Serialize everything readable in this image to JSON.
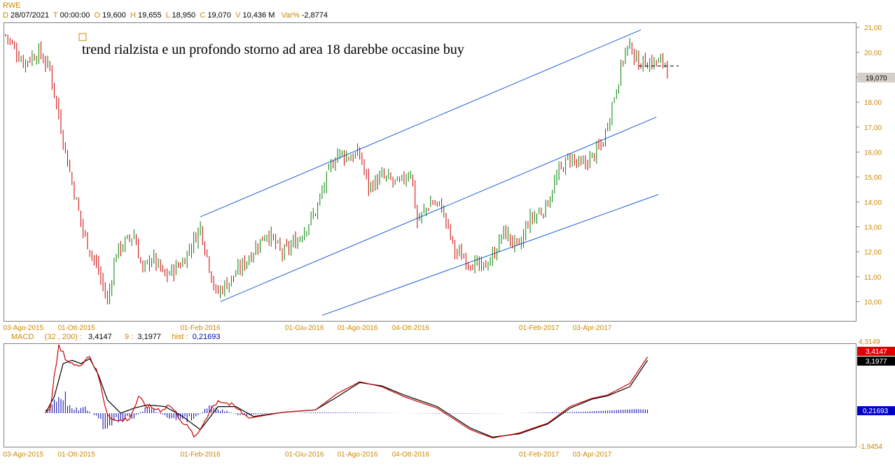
{
  "header": {
    "ticker": "RWE",
    "date_key": "D",
    "date": "28/07/2021",
    "time_key": "T",
    "time": "00:00:00",
    "open_key": "O",
    "open": "19,600",
    "high_key": "H",
    "high": "19,655",
    "low_key": "L",
    "low": "18,950",
    "close_key": "C",
    "close": "19,070",
    "vol_key": "V",
    "vol": "10,436 M",
    "var_key": "Var%",
    "var": "-2,8774"
  },
  "annotation": "trend rialzista e un profondo storno ad area 18 darebbe occasine buy",
  "price_tag": "19,070",
  "macd_header": {
    "name": "MACD",
    "params": "(32 , 200) :",
    "macd_value": "3,4147",
    "signal_key": "9 :",
    "signal_value": "3,1977",
    "hist_key": "hist :",
    "hist_value": "0,21693"
  },
  "macd_tags": {
    "macd": "3,4147",
    "signal": "3,1977",
    "hist": "0,21693"
  },
  "macd_axis": {
    "top": "4,3149",
    "bottom": "-1,9454"
  },
  "colors": {
    "accent": "#cc8800",
    "up": "#008000",
    "down": "#cc0000",
    "channel": "#1f5fd6",
    "macd": "#cc0000",
    "signal": "#000000",
    "hist": "#0000aa"
  },
  "chart_data": [
    {
      "type": "candlestick",
      "title": "RWE",
      "y_ticks": [
        "21,00",
        "20,00",
        "19,00",
        "18,00",
        "17,00",
        "16,00",
        "15,00",
        "14,00",
        "13,00",
        "12,00",
        "11,00",
        "10,00"
      ],
      "ylim": [
        9.2,
        21.2
      ],
      "x_ticks": [
        "03-Ago-2015",
        "01-Ott-2015",
        "01-Feb-2016",
        "01-Giu-2016",
        "01-Ago-2016",
        "04-Ott-2016",
        "01-Feb-2017",
        "03-Apr-2017"
      ],
      "x_tick_index": [
        8,
        32,
        88,
        135,
        159,
        183,
        241,
        265
      ],
      "n_bars": 300,
      "anchors": [
        [
          0,
          20.7
        ],
        [
          8,
          19.6
        ],
        [
          15,
          20.0
        ],
        [
          20,
          19.3
        ],
        [
          28,
          15.6
        ],
        [
          35,
          12.8
        ],
        [
          42,
          11.2
        ],
        [
          46,
          10.0
        ],
        [
          50,
          12.0
        ],
        [
          58,
          12.7
        ],
        [
          62,
          11.2
        ],
        [
          66,
          11.8
        ],
        [
          72,
          11.0
        ],
        [
          80,
          11.6
        ],
        [
          88,
          13.0
        ],
        [
          95,
          10.3
        ],
        [
          103,
          11.0
        ],
        [
          110,
          11.8
        ],
        [
          118,
          12.8
        ],
        [
          125,
          11.9
        ],
        [
          132,
          12.5
        ],
        [
          140,
          13.6
        ],
        [
          146,
          15.2
        ],
        [
          150,
          16.0
        ],
        [
          155,
          15.8
        ],
        [
          160,
          15.9
        ],
        [
          164,
          14.6
        ],
        [
          170,
          15.0
        ],
        [
          178,
          14.7
        ],
        [
          183,
          15.3
        ],
        [
          186,
          13.2
        ],
        [
          192,
          14.0
        ],
        [
          197,
          13.8
        ],
        [
          203,
          12.0
        ],
        [
          210,
          11.6
        ],
        [
          215,
          11.3
        ],
        [
          220,
          11.8
        ],
        [
          225,
          12.8
        ],
        [
          232,
          12.1
        ],
        [
          236,
          13.2
        ],
        [
          244,
          13.8
        ],
        [
          250,
          15.2
        ],
        [
          255,
          15.8
        ],
        [
          260,
          15.4
        ],
        [
          266,
          15.9
        ],
        [
          270,
          16.4
        ],
        [
          272,
          17.2
        ],
        [
          276,
          18.6
        ],
        [
          280,
          20.1
        ],
        [
          283,
          20.2
        ],
        [
          285,
          19.6
        ]
      ],
      "last": {
        "open": 19.6,
        "high": 19.655,
        "low": 18.95,
        "close": 19.07
      },
      "channel": [
        {
          "from": [
            88,
            13.4
          ],
          "to": [
            287,
            20.9
          ]
        },
        {
          "from": [
            97,
            10.0
          ],
          "to": [
            294,
            17.4
          ]
        },
        {
          "from": [
            143,
            9.45
          ],
          "to": [
            295,
            14.3
          ]
        }
      ],
      "dashed_level": 19.45
    },
    {
      "type": "macd",
      "title": "MACD",
      "ylim": [
        -1.9454,
        4.3149
      ],
      "macd_anchors": [
        [
          18,
          0.0
        ],
        [
          20,
          0.3
        ],
        [
          24,
          4.0
        ],
        [
          28,
          3.2
        ],
        [
          32,
          2.8
        ],
        [
          38,
          3.5
        ],
        [
          42,
          2.2
        ],
        [
          44,
          1.0
        ],
        [
          46,
          0.0
        ],
        [
          50,
          -0.5
        ],
        [
          56,
          -0.3
        ],
        [
          60,
          0.9
        ],
        [
          64,
          0.4
        ],
        [
          70,
          0.2
        ],
        [
          74,
          0.5
        ],
        [
          80,
          -0.5
        ],
        [
          86,
          -1.5
        ],
        [
          92,
          0.1
        ],
        [
          96,
          0.8
        ],
        [
          100,
          0.6
        ],
        [
          104,
          0.3
        ],
        [
          110,
          -0.3
        ],
        [
          125,
          0.05
        ],
        [
          140,
          0.2
        ],
        [
          150,
          1.2
        ],
        [
          160,
          1.9
        ],
        [
          170,
          1.6
        ],
        [
          180,
          1.0
        ],
        [
          195,
          0.3
        ],
        [
          210,
          -1.0
        ],
        [
          220,
          -1.5
        ],
        [
          232,
          -1.2
        ],
        [
          245,
          -0.6
        ],
        [
          255,
          0.4
        ],
        [
          265,
          0.9
        ],
        [
          272,
          1.1
        ],
        [
          282,
          1.8
        ],
        [
          290,
          3.4
        ]
      ],
      "signal_anchors": [
        [
          18,
          0.0
        ],
        [
          22,
          1.0
        ],
        [
          26,
          3.0
        ],
        [
          30,
          3.2
        ],
        [
          34,
          3.0
        ],
        [
          38,
          3.3
        ],
        [
          42,
          2.3
        ],
        [
          46,
          0.8
        ],
        [
          52,
          0.0
        ],
        [
          58,
          0.3
        ],
        [
          64,
          0.5
        ],
        [
          72,
          0.4
        ],
        [
          80,
          -0.2
        ],
        [
          88,
          -1.0
        ],
        [
          96,
          0.4
        ],
        [
          104,
          0.4
        ],
        [
          112,
          -0.2
        ],
        [
          125,
          0.05
        ],
        [
          140,
          0.2
        ],
        [
          150,
          1.0
        ],
        [
          160,
          1.85
        ],
        [
          170,
          1.65
        ],
        [
          180,
          1.1
        ],
        [
          195,
          0.4
        ],
        [
          210,
          -0.9
        ],
        [
          220,
          -1.45
        ],
        [
          232,
          -1.25
        ],
        [
          245,
          -0.65
        ],
        [
          255,
          0.3
        ],
        [
          265,
          0.85
        ],
        [
          272,
          1.05
        ],
        [
          282,
          1.6
        ],
        [
          290,
          3.2
        ]
      ],
      "hist_anchors": [
        [
          18,
          0.0
        ],
        [
          22,
          0.8
        ],
        [
          26,
          1.2
        ],
        [
          30,
          0.2
        ],
        [
          36,
          0.3
        ],
        [
          42,
          -0.3
        ],
        [
          46,
          -1.4
        ],
        [
          50,
          -0.4
        ],
        [
          58,
          -0.3
        ],
        [
          64,
          0.4
        ],
        [
          72,
          -0.2
        ],
        [
          80,
          -0.4
        ],
        [
          86,
          -0.3
        ],
        [
          92,
          0.5
        ],
        [
          98,
          0.2
        ],
        [
          106,
          -0.15
        ],
        [
          115,
          -0.05
        ],
        [
          140,
          0.05
        ],
        [
          160,
          0.03
        ],
        [
          200,
          -0.03
        ],
        [
          230,
          0.0
        ],
        [
          260,
          0.08
        ],
        [
          285,
          0.25
        ],
        [
          290,
          0.22
        ]
      ]
    }
  ]
}
